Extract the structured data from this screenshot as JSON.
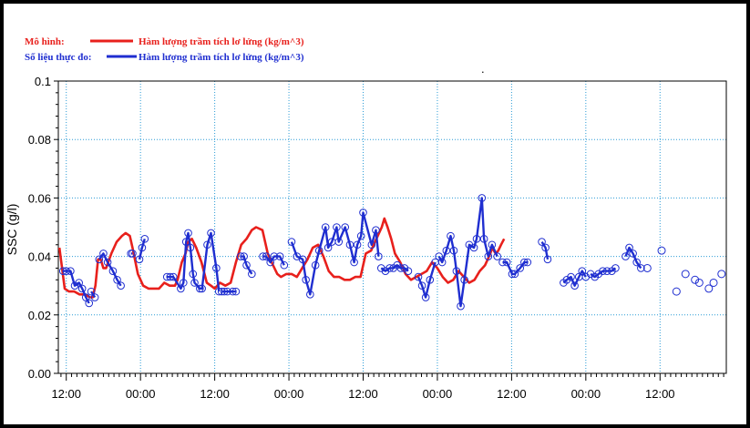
{
  "chart_data": {
    "type": "line",
    "title": "",
    "xlabel": "",
    "ylabel": "SSC (g/l)",
    "ylim": [
      0,
      0.1
    ],
    "yticks": [
      "0.00",
      "0.02",
      "0.04",
      "0.06",
      "0.08",
      "0.1"
    ],
    "xticks": [
      "12:00",
      "00:00",
      "12:00",
      "00:00",
      "12:00",
      "00:00",
      "12:00",
      "00:00",
      "12:00"
    ],
    "x_unit": "hours",
    "xlim": [
      -1.5,
      98.5
    ],
    "grid": true,
    "legend_position": "top-left",
    "legend": [
      {
        "name": "Mô hình:",
        "series": "Hàm lượng trầm tích lơ lửng (kg/m^3)",
        "color": "#e8201c"
      },
      {
        "name": "Số liệu thực đo:",
        "series": "Hàm lượng trầm tích lơ lửng (kg/m^3)",
        "color": "#1f2ed0"
      }
    ],
    "series": [
      {
        "name": "Hàm lượng trầm tích lơ lửng (kg/m^3)",
        "role": "model",
        "color": "#e8201c",
        "x": [
          -1.3,
          -0.8,
          -0.3,
          0.5,
          1.5,
          2.5,
          3.5,
          4.5,
          5,
          5.5,
          6,
          6.5,
          7,
          7.5,
          8.5,
          9.5,
          10.5,
          11.2,
          12,
          12.5,
          13.5,
          14.5,
          15.5,
          16.5,
          17.5,
          18.5,
          19.5,
          20.5,
          21,
          21.8,
          22.5,
          23,
          23.7,
          24.5,
          25.5,
          26.5,
          27.3,
          28,
          29,
          30,
          31,
          32,
          33,
          34,
          35,
          35.8,
          37,
          38,
          39,
          39.8,
          40.5,
          41.5,
          42.5,
          43.5,
          44.5,
          45.5,
          46.5,
          47.5,
          48.5,
          49.5,
          50.5,
          51.5,
          52.5,
          53.5,
          54.5,
          55.5,
          56.5,
          57.5,
          58.5,
          59.5,
          60,
          60.6,
          61.3,
          62,
          63,
          64,
          65,
          66,
          67,
          68,
          69,
          70,
          71,
          72,
          73,
          74,
          75,
          76,
          77,
          78,
          79,
          80,
          80.3,
          81,
          81.5,
          82,
          82.6
        ],
        "y": [
          0.043,
          0.036,
          0.029,
          0.028,
          0.028,
          0.027,
          0.027,
          0.026,
          0.026,
          0.03,
          0.039,
          0.039,
          0.036,
          0.036,
          0.041,
          0.045,
          0.047,
          0.048,
          0.047,
          0.043,
          0.034,
          0.03,
          0.029,
          0.029,
          0.029,
          0.031,
          0.03,
          0.03,
          0.032,
          0.038,
          0.041,
          0.045,
          0.046,
          0.043,
          0.038,
          0.031,
          0.03,
          0.029,
          0.031,
          0.03,
          0.031,
          0.038,
          0.044,
          0.046,
          0.049,
          0.05,
          0.049,
          0.041,
          0.037,
          0.034,
          0.033,
          0.034,
          0.034,
          0.033,
          0.036,
          0.039,
          0.043,
          0.044,
          0.04,
          0.035,
          0.033,
          0.033,
          0.032,
          0.032,
          0.033,
          0.033,
          0.041,
          0.042,
          0.046,
          0.05,
          0.053,
          0.05,
          0.046,
          0.041,
          0.038,
          0.034,
          0.032,
          0.033,
          0.034,
          0.035,
          0.038,
          0.036,
          0.033,
          0.031,
          0.032,
          0.035,
          0.033,
          0.031,
          0.032,
          0.035,
          0.037,
          0.041,
          0.043,
          0.041,
          0.042,
          0.044,
          0.046
        ]
      },
      {
        "name": "Hàm lượng trầm tích lơ lửng (kg/m^3)",
        "role": "measured",
        "color": "#1f2ed0",
        "segments": [
          {
            "x": [
              -0.6,
              0,
              0.8,
              1.6,
              2.4,
              3,
              3.7,
              4.3
            ],
            "y": [
              0.035,
              0.035,
              0.035,
              0.03,
              0.031,
              0.029,
              0.026,
              0.024
            ]
          },
          {
            "x": [
              4.7,
              5.4
            ],
            "y": [
              0.028,
              0.026
            ]
          },
          {
            "x": [
              6.2,
              7,
              7.8,
              8.8,
              9.6,
              10.3
            ],
            "y": [
              0.039,
              0.041,
              0.038,
              0.035,
              0.032,
              0.03
            ]
          },
          {
            "x": [
              12.2,
              12.5
            ],
            "y": [
              0.041,
              0.041
            ]
          },
          {
            "x": [
              13.8,
              14.3,
              14.8
            ],
            "y": [
              0.039,
              0.043,
              0.046
            ]
          },
          {
            "x": [
              19,
              19.6,
              20.2,
              21.6,
              22.1,
              22.6,
              23,
              23.4,
              23.9,
              24.2,
              25.2,
              25.6,
              26.6,
              27.3,
              28.3,
              28.8
            ],
            "y": [
              0.033,
              0.033,
              0.033,
              0.029,
              0.031,
              0.045,
              0.048,
              0.043,
              0.034,
              0.031,
              0.029,
              0.029,
              0.044,
              0.048,
              0.036,
              0.028
            ]
          },
          {
            "x": [
              29.3,
              29.8,
              30.4,
              31.4,
              32
            ],
            "y": [
              0.028,
              0.028,
              0.028,
              0.028,
              0.028
            ]
          },
          {
            "x": [
              32.9,
              33.5,
              34,
              35
            ],
            "y": [
              0.04,
              0.04,
              0.037,
              0.034
            ]
          },
          {
            "x": [
              37.1,
              37.7,
              38.5,
              39.2,
              40.3,
              41.1
            ],
            "y": [
              0.04,
              0.04,
              0.038,
              0.04,
              0.04,
              0.037
            ]
          },
          {
            "x": [
              42.5,
              43.5,
              44.6,
              45.2,
              46,
              47,
              47.7,
              48.9,
              49.4,
              50.1,
              51,
              51.4,
              52.6,
              53.5,
              54.3,
              54.9,
              55.6,
              56,
              57.6,
              58.4,
              58.9
            ],
            "y": [
              0.045,
              0.04,
              0.039,
              0.032,
              0.027,
              0.037,
              0.042,
              0.05,
              0.043,
              0.045,
              0.05,
              0.045,
              0.05,
              0.044,
              0.038,
              0.044,
              0.047,
              0.055,
              0.044,
              0.049,
              0.04
            ]
          },
          {
            "x": [
              59.4,
              60.2,
              61,
              61.7,
              62.4,
              63.1,
              63.8,
              64.5
            ],
            "y": [
              0.036,
              0.035,
              0.036,
              0.036,
              0.037,
              0.036,
              0.036,
              0.035
            ]
          },
          {
            "x": [
              66.4,
              67.1,
              67.8,
              68.6,
              69.6
            ],
            "y": [
              0.033,
              0.03,
              0.026,
              0.032,
              0.038
            ]
          },
          {
            "x": [
              70.3,
              70.9,
              71.7,
              72.5,
              73.1,
              73.6,
              74.4,
              75.1,
              76,
              76.9,
              77.4,
              78.4,
              78.8,
              79.6,
              80.3,
              81.3
            ],
            "y": [
              0.04,
              0.038,
              0.042,
              0.047,
              0.042,
              0.035,
              0.023,
              0.032,
              0.044,
              0.043,
              0.046,
              0.06,
              0.046,
              0.04,
              0.044,
              0.04
            ]
          },
          {
            "x": [
              82.3,
              83.1,
              84.1,
              84.6,
              85.6,
              86.4,
              87
            ],
            "y": [
              0.038,
              0.038,
              0.034,
              0.034,
              0.036,
              0.038,
              0.038
            ]
          },
          {
            "x": [
              89.7,
              90.4,
              90.8
            ],
            "y": [
              0.045,
              0.043,
              0.039
            ]
          },
          {
            "x": [
              93.8,
              94.4,
              95.2,
              95.9,
              96.7,
              97.3,
              98
            ],
            "y": [
              0.031,
              0.032,
              0.033,
              0.03,
              0.033,
              0.035,
              0.033
            ]
          },
          {
            "x": [
              98.9,
              99.7,
              100.4,
              101.2,
              102,
              102.9,
              103.6
            ],
            "y": [
              0.034,
              0.033,
              0.034,
              0.035,
              0.035,
              0.035,
              0.036
            ]
          },
          {
            "x": [
              105.5,
              106.2,
              106.9,
              107.6,
              108.4
            ],
            "y": [
              0.04,
              0.043,
              0.041,
              0.038,
              0.036
            ]
          }
        ],
        "markers_only": {
          "x": [
            109.6,
            112.3,
            115.1,
            116.8,
            118.6,
            119.4,
            121.2,
            122.1,
            123.6
          ],
          "y": [
            0.036,
            0.042,
            0.028,
            0.034,
            0.032,
            0.031,
            0.029,
            0.031,
            0.034
          ]
        }
      }
    ]
  }
}
